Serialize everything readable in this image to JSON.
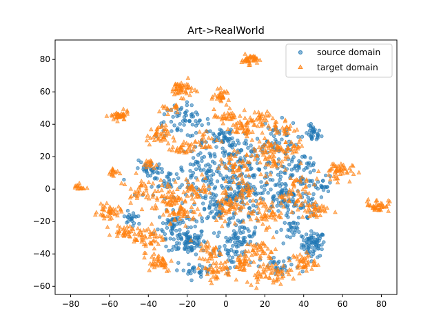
{
  "chart_data": {
    "type": "scatter",
    "title": "Art->RealWorld",
    "xlabel": "",
    "ylabel": "",
    "xlim": [
      -88,
      88
    ],
    "ylim": [
      -65,
      92
    ],
    "xticks": [
      -80,
      -60,
      -40,
      -20,
      0,
      20,
      40,
      60,
      80
    ],
    "yticks": [
      -60,
      -40,
      -20,
      0,
      20,
      40,
      60,
      80
    ],
    "grid": false,
    "legend_position": "top-right",
    "series": [
      {
        "name": "source domain",
        "marker": "circle",
        "color": "#1f77b4",
        "clusters": [
          {
            "x": 45,
            "y": -34,
            "sx": 3,
            "sy": 4,
            "n": 70
          },
          {
            "x": 45,
            "y": 34,
            "sx": 2,
            "sy": 2.5,
            "n": 30
          },
          {
            "x": -20,
            "y": -32,
            "sx": 5,
            "sy": 4,
            "n": 80
          },
          {
            "x": -27,
            "y": -22,
            "sx": 4,
            "sy": 4,
            "n": 50
          },
          {
            "x": 8,
            "y": -28,
            "sx": 4,
            "sy": 5,
            "n": 60
          },
          {
            "x": -22,
            "y": 42,
            "sx": 7,
            "sy": 5,
            "n": 60
          },
          {
            "x": -8,
            "y": 10,
            "sx": 10,
            "sy": 9,
            "n": 110
          },
          {
            "x": 12,
            "y": 12,
            "sx": 7,
            "sy": 8,
            "n": 80
          },
          {
            "x": 28,
            "y": -5,
            "sx": 5,
            "sy": 5,
            "n": 50
          },
          {
            "x": 0,
            "y": 30,
            "sx": 6,
            "sy": 5,
            "n": 60
          },
          {
            "x": -5,
            "y": -10,
            "sx": 6,
            "sy": 6,
            "n": 70
          },
          {
            "x": 25,
            "y": 30,
            "sx": 6,
            "sy": 6,
            "n": 50
          },
          {
            "x": -40,
            "y": 12,
            "sx": 3,
            "sy": 3,
            "n": 25
          },
          {
            "x": 38,
            "y": -10,
            "sx": 5,
            "sy": 5,
            "n": 40
          },
          {
            "x": 48,
            "y": 2,
            "sx": 4,
            "sy": 3,
            "n": 25
          },
          {
            "x": 28,
            "y": -48,
            "sx": 5,
            "sy": 3,
            "n": 30
          },
          {
            "x": -48,
            "y": -18,
            "sx": 3,
            "sy": 3,
            "n": 20
          },
          {
            "x": 32,
            "y": 10,
            "sx": 5,
            "sy": 5,
            "n": 40
          },
          {
            "x": 0,
            "y": -40,
            "sx": 6,
            "sy": 5,
            "n": 40
          },
          {
            "x": -15,
            "y": -50,
            "sx": 6,
            "sy": 2,
            "n": 25
          },
          {
            "x": 40,
            "y": 15,
            "sx": 3,
            "sy": 3,
            "n": 20
          },
          {
            "x": 35,
            "y": -25,
            "sx": 4,
            "sy": 3,
            "n": 25
          },
          {
            "x": -30,
            "y": 5,
            "sx": 6,
            "sy": 5,
            "n": 40
          },
          {
            "x": 10,
            "y": -5,
            "sx": 7,
            "sy": 6,
            "n": 60
          }
        ]
      },
      {
        "name": "target domain",
        "marker": "triangle",
        "color": "#ff7f0e",
        "clusters": [
          {
            "x": 12,
            "y": 80,
            "sx": 2,
            "sy": 1.5,
            "n": 40
          },
          {
            "x": -23,
            "y": 62,
            "sx": 3,
            "sy": 2.5,
            "n": 50
          },
          {
            "x": -2,
            "y": 57,
            "sx": 2,
            "sy": 2,
            "n": 30
          },
          {
            "x": -55,
            "y": 45,
            "sx": 2.5,
            "sy": 1.5,
            "n": 40
          },
          {
            "x": -76,
            "y": 1,
            "sx": 1.5,
            "sy": 1,
            "n": 15
          },
          {
            "x": -58,
            "y": 10,
            "sx": 1.5,
            "sy": 2,
            "n": 15
          },
          {
            "x": -60,
            "y": -14,
            "sx": 3,
            "sy": 2,
            "n": 40
          },
          {
            "x": -52,
            "y": -26,
            "sx": 3,
            "sy": 2,
            "n": 30
          },
          {
            "x": 78,
            "y": -10,
            "sx": 3,
            "sy": 2,
            "n": 40
          },
          {
            "x": 57,
            "y": 11,
            "sx": 4,
            "sy": 3,
            "n": 50
          },
          {
            "x": -35,
            "y": 33,
            "sx": 3,
            "sy": 3,
            "n": 40
          },
          {
            "x": -22,
            "y": 25,
            "sx": 3,
            "sy": 2,
            "n": 30
          },
          {
            "x": -40,
            "y": 15,
            "sx": 2,
            "sy": 1.5,
            "n": 15
          },
          {
            "x": -30,
            "y": -5,
            "sx": 4,
            "sy": 5,
            "n": 60
          },
          {
            "x": -40,
            "y": -30,
            "sx": 4,
            "sy": 4,
            "n": 50
          },
          {
            "x": -35,
            "y": -45,
            "sx": 4,
            "sy": 3,
            "n": 40
          },
          {
            "x": -22,
            "y": -15,
            "sx": 4,
            "sy": 3,
            "n": 40
          },
          {
            "x": -8,
            "y": -38,
            "sx": 3,
            "sy": 3,
            "n": 30
          },
          {
            "x": 2,
            "y": -10,
            "sx": 4,
            "sy": 6,
            "n": 60
          },
          {
            "x": -5,
            "y": -50,
            "sx": 4,
            "sy": 3,
            "n": 40
          },
          {
            "x": 8,
            "y": -45,
            "sx": 3,
            "sy": 3,
            "n": 30
          },
          {
            "x": 22,
            "y": -52,
            "sx": 6,
            "sy": 3,
            "n": 60
          },
          {
            "x": 18,
            "y": -38,
            "sx": 4,
            "sy": 3,
            "n": 40
          },
          {
            "x": 40,
            "y": -45,
            "sx": 3,
            "sy": 3,
            "n": 40
          },
          {
            "x": 20,
            "y": -15,
            "sx": 4,
            "sy": 4,
            "n": 50
          },
          {
            "x": 45,
            "y": -13,
            "sx": 4,
            "sy": 3,
            "n": 40
          },
          {
            "x": 22,
            "y": 22,
            "sx": 5,
            "sy": 6,
            "n": 80
          },
          {
            "x": 8,
            "y": 38,
            "sx": 4,
            "sy": 3,
            "n": 40
          },
          {
            "x": 18,
            "y": 42,
            "sx": 3,
            "sy": 3,
            "n": 30
          },
          {
            "x": 0,
            "y": 45,
            "sx": 3,
            "sy": 2,
            "n": 30
          },
          {
            "x": 30,
            "y": 38,
            "sx": 3,
            "sy": 3,
            "n": 25
          },
          {
            "x": 5,
            "y": 15,
            "sx": 4,
            "sy": 4,
            "n": 40
          },
          {
            "x": -15,
            "y": 0,
            "sx": 4,
            "sy": 4,
            "n": 40
          },
          {
            "x": -10,
            "y": 30,
            "sx": 3,
            "sy": 3,
            "n": 20
          },
          {
            "x": 10,
            "y": 0,
            "sx": 3,
            "sy": 3,
            "n": 25
          },
          {
            "x": 35,
            "y": 25,
            "sx": 3,
            "sy": 3,
            "n": 20
          },
          {
            "x": 32,
            "y": -5,
            "sx": 3,
            "sy": 3,
            "n": 25
          },
          {
            "x": -45,
            "y": 0,
            "sx": 3,
            "sy": 4,
            "n": 30
          },
          {
            "x": 38,
            "y": 3,
            "sx": 3,
            "sy": 3,
            "n": 20
          },
          {
            "x": -30,
            "y": 50,
            "sx": 3,
            "sy": 2,
            "n": 15
          }
        ]
      }
    ]
  }
}
